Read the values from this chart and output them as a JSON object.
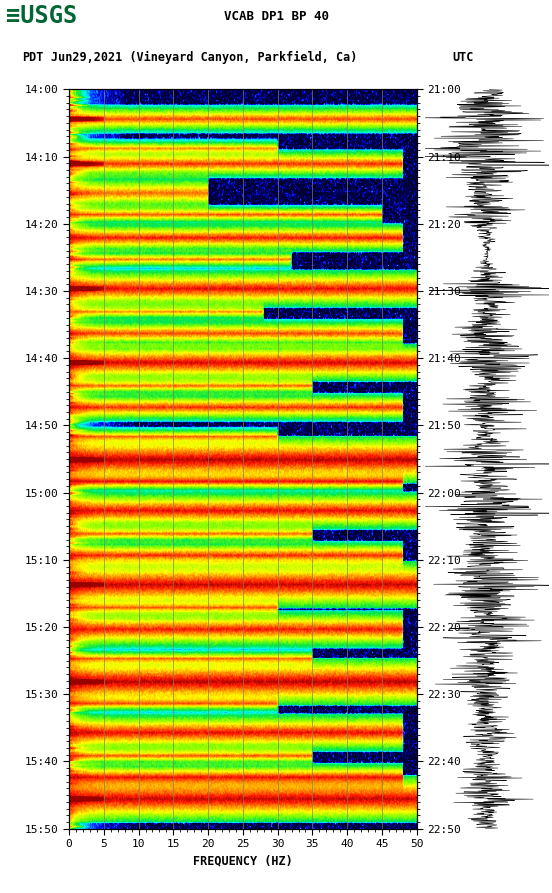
{
  "title_line1": "VCAB DP1 BP 40",
  "title_line2_pdt": "PDT",
  "title_line2_date": "Jun29,2021 (Vineyard Canyon, Parkfield, Ca)",
  "title_line2_utc": "UTC",
  "xlabel": "FREQUENCY (HZ)",
  "freq_min": 0,
  "freq_max": 50,
  "freq_ticks": [
    0,
    5,
    10,
    15,
    20,
    25,
    30,
    35,
    40,
    45,
    50
  ],
  "pdt_ticks": [
    "14:00",
    "14:10",
    "14:20",
    "14:30",
    "14:40",
    "14:50",
    "15:00",
    "15:10",
    "15:20",
    "15:30",
    "15:40",
    "15:50"
  ],
  "utc_ticks": [
    "21:00",
    "21:10",
    "21:20",
    "21:30",
    "21:40",
    "21:50",
    "22:00",
    "22:10",
    "22:20",
    "22:30",
    "22:40",
    "22:50"
  ],
  "background_color": "#ffffff",
  "usgs_green": "#006633",
  "vertical_lines_freq": [
    5,
    10,
    15,
    20,
    25,
    30,
    35,
    40,
    45
  ],
  "vline_color": "#808060",
  "figsize": [
    5.52,
    8.93
  ],
  "dpi": 100
}
